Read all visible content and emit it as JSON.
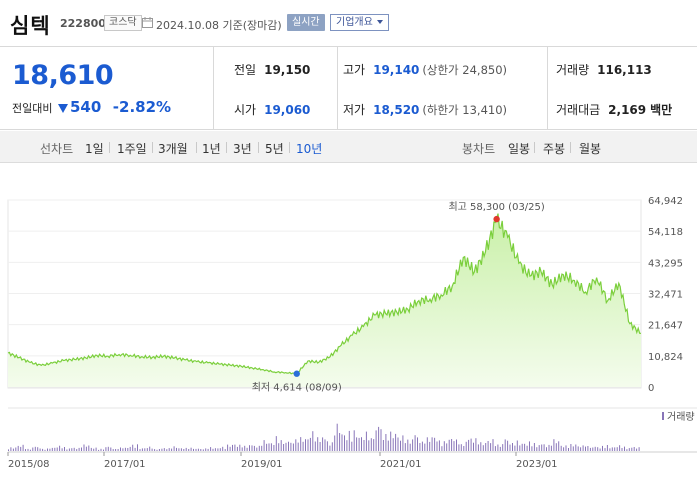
{
  "header": {
    "name": "심텍",
    "code": "222800",
    "market": "코스닥",
    "date": "2024.10.08",
    "basis": "기준(장마감)",
    "realtime_label": "실시간",
    "company_label": "기업개요"
  },
  "price": {
    "current": "18,610",
    "change_label": "전일대비",
    "change": "540",
    "direction": "down",
    "change_pct": "-2.82%",
    "color": "#1b5bd1"
  },
  "stats": {
    "prev_close": {
      "label": "전일",
      "value": "19,150"
    },
    "high": {
      "label": "고가",
      "value": "19,140",
      "sub": "(상한가 24,850)"
    },
    "volume": {
      "label": "거래량",
      "value": "116,113"
    },
    "open": {
      "label": "시가",
      "value": "19,060"
    },
    "low": {
      "label": "저가",
      "value": "18,520",
      "sub": "(하한가 13,410)"
    },
    "amount": {
      "label": "거래대금",
      "value": "2,169",
      "unit": "백만"
    }
  },
  "tabs": {
    "line_chart_label": "선차트",
    "periods": [
      "1일",
      "1주일",
      "3개월",
      "1년",
      "3년",
      "5년",
      "10년"
    ],
    "selected_period": "10년",
    "candle_label": "봉차트",
    "candles": [
      "일봉",
      "주봉",
      "월봉"
    ]
  },
  "chart_data": {
    "type": "area",
    "y_ticks": [
      "64,942",
      "54,118",
      "43,295",
      "32,471",
      "21,647",
      "10,824",
      "0"
    ],
    "ylim": [
      0,
      64942
    ],
    "x_ticks": [
      "2015/08",
      "2017/01",
      "2019/01",
      "2021/01",
      "2023/01"
    ],
    "max_annotation": "최고 58,300 (03/25)",
    "min_annotation": "최저 4,614 (08/09)",
    "volume_label": "거래량",
    "series": [
      {
        "x": [
          "2015/08",
          "2015/10",
          "2015/12",
          "2016/02",
          "2016/04",
          "2016/06",
          "2016/08",
          "2016/10",
          "2016/12",
          "2017/02",
          "2017/04",
          "2017/06",
          "2017/08",
          "2017/10",
          "2017/12",
          "2018/02",
          "2018/04",
          "2018/06",
          "2018/08",
          "2018/10",
          "2018/12",
          "2019/02",
          "2019/04",
          "2019/06",
          "2019/08",
          "2019/10",
          "2019/12",
          "2020/02",
          "2020/04",
          "2020/06",
          "2020/08",
          "2020/10",
          "2020/12",
          "2021/02",
          "2021/03",
          "2021/04",
          "2021/06",
          "2021/08",
          "2021/10",
          "2021/12",
          "2022/02",
          "2022/03",
          "2022/04",
          "2022/06",
          "2022/08",
          "2022/10",
          "2022/12",
          "2023/02",
          "2023/04",
          "2023/06",
          "2023/08",
          "2023/10",
          "2023/12",
          "2024/02",
          "2024/04",
          "2024/06",
          "2024/08",
          "2024/10"
        ],
        "values": [
          11800,
          10200,
          8500,
          7500,
          8300,
          9200,
          9600,
          10100,
          11000,
          10700,
          11300,
          11000,
          10500,
          10300,
          10700,
          10100,
          9400,
          8800,
          8400,
          8000,
          7600,
          7200,
          6600,
          6000,
          5200,
          5000,
          4614,
          9000,
          8600,
          10500,
          14500,
          18000,
          21000,
          25000,
          25500,
          26000,
          27000,
          30000,
          30500,
          32000,
          35000,
          45000,
          40000,
          47000,
          58300,
          52000,
          43000,
          38500,
          40000,
          35500,
          39000,
          37000,
          33000,
          38000,
          30000,
          36000,
          22000,
          18610
        ]
      }
    ],
    "volume_values": [
      8,
      11,
      6,
      9,
      5,
      7,
      10,
      6,
      8,
      12,
      7,
      5,
      9,
      6,
      7,
      14,
      6,
      8,
      5,
      7,
      9,
      6,
      8,
      5,
      7,
      6,
      9,
      14,
      11,
      15,
      12,
      22,
      17,
      28,
      20,
      30,
      26,
      40,
      32,
      25,
      48,
      36,
      44,
      30,
      35,
      52,
      41,
      38,
      30,
      28,
      34,
      25,
      30,
      22,
      26,
      20,
      24,
      29,
      18,
      22,
      17,
      25,
      20,
      16,
      19,
      14,
      17,
      21,
      12,
      15,
      10,
      14,
      9,
      12,
      8,
      11,
      7,
      10
    ]
  }
}
